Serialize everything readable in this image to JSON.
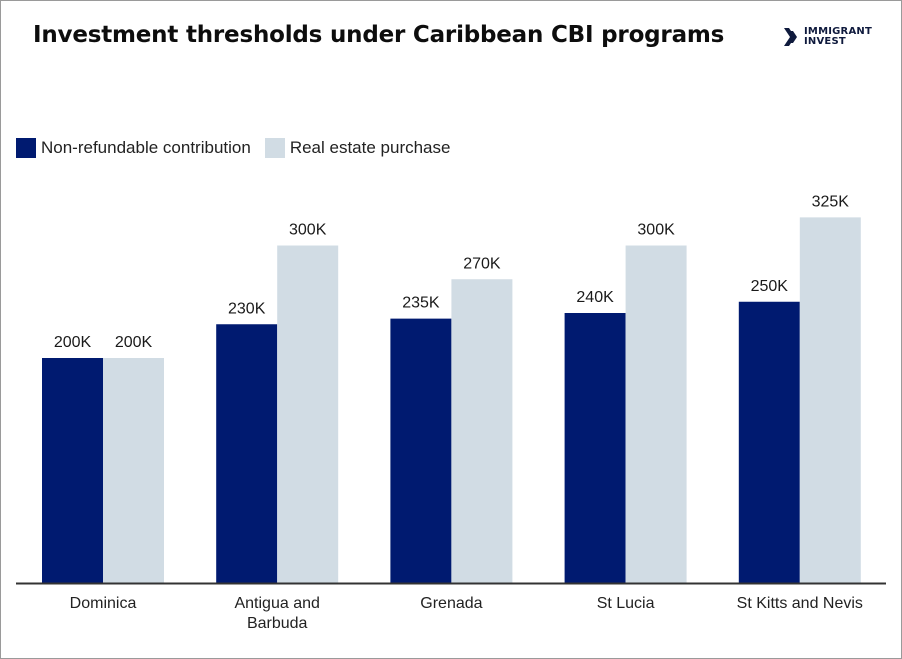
{
  "header": {
    "title": "Investment thresholds under Caribbean CBI programs",
    "logo_line1": "IMMIGRANT",
    "logo_line2": "INVEST",
    "logo_icon": "chevrons-right-icon"
  },
  "colors": {
    "series1": "#001a70",
    "series2": "#d1dce4",
    "axis": "#333333"
  },
  "chart_data": {
    "type": "bar",
    "title": "Investment thresholds under Caribbean CBI programs",
    "xlabel": "",
    "ylabel": "",
    "categories": [
      "Dominica",
      "Antigua and Barbuda",
      "Grenada",
      "St Lucia",
      "St Kitts and Nevis"
    ],
    "category_lines": [
      [
        "Dominica"
      ],
      [
        "Antigua and",
        "Barbuda"
      ],
      [
        "Grenada"
      ],
      [
        "St Lucia"
      ],
      [
        "St Kitts and Nevis"
      ]
    ],
    "series": [
      {
        "name": "Non-refundable contribution",
        "values": [
          200,
          230,
          235,
          240,
          250
        ],
        "labels": [
          "200K",
          "230K",
          "235K",
          "240K",
          "250K"
        ]
      },
      {
        "name": "Real estate purchase",
        "values": [
          200,
          300,
          270,
          300,
          325
        ],
        "labels": [
          "200K",
          "300K",
          "270K",
          "300K",
          "325K"
        ]
      }
    ],
    "unit": "K",
    "ylim": [
      0,
      400
    ],
    "grid": false,
    "legend_position": "top-left"
  }
}
